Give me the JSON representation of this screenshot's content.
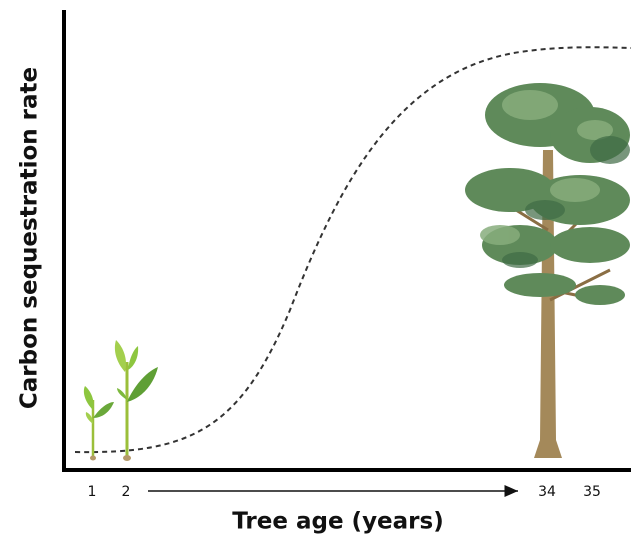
{
  "axes": {
    "y_label": "Carbon sequestration rate",
    "x_label": "Tree age (years)",
    "x_ticks": [
      1,
      2,
      34,
      35
    ]
  }
}
